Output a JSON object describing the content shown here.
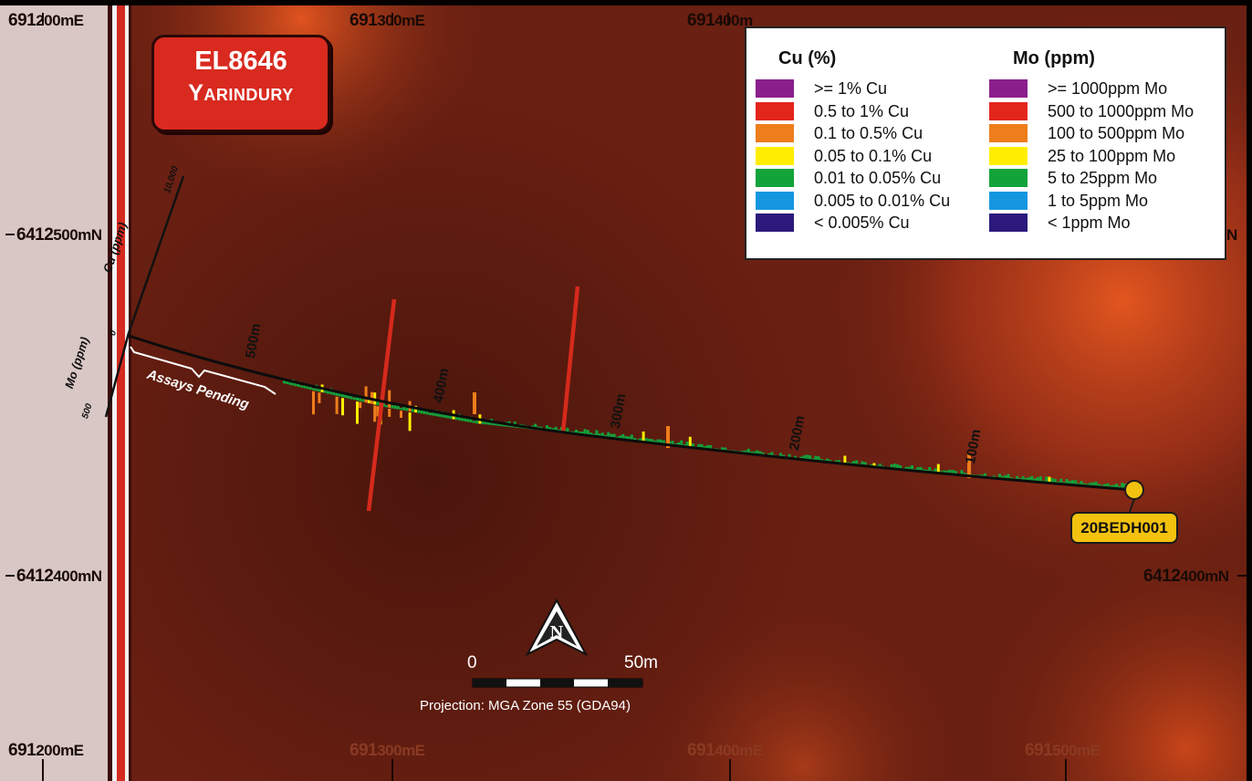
{
  "title": {
    "line1": "EL8646",
    "line2": "Yarindury"
  },
  "grid_labels": {
    "top": [
      {
        "prefix": "691",
        "main": "200mE"
      },
      {
        "prefix": "691",
        "main": "300mE"
      },
      {
        "prefix": "691",
        "main": "400m"
      }
    ],
    "bottom": [
      {
        "prefix": "691",
        "main": "200mE"
      },
      {
        "prefix": "691",
        "main": "300mE"
      },
      {
        "prefix": "691",
        "main": "400mE"
      },
      {
        "prefix": "691",
        "main": "500mE"
      }
    ],
    "left": [
      {
        "prefix": "6412",
        "main": "500mN"
      },
      {
        "prefix": "6412",
        "main": "400mN"
      }
    ],
    "right": [
      {
        "prefix": "",
        "main": "N"
      },
      {
        "prefix": "6412",
        "main": "400mN"
      }
    ]
  },
  "legend": {
    "cu_title": "Cu (%)",
    "mo_title": "Mo (ppm)",
    "cu_items": [
      {
        "label": ">= 1% Cu",
        "color": "#8b1f8c"
      },
      {
        "label": "0.5 to 1% Cu",
        "color": "#e3261c"
      },
      {
        "label": "0.1 to 0.5% Cu",
        "color": "#ee7d1b"
      },
      {
        "label": "0.05 to 0.1% Cu",
        "color": "#ffee00"
      },
      {
        "label": "0.01 to 0.05% Cu",
        "color": "#12a33b"
      },
      {
        "label": "0.005 to 0.01% Cu",
        "color": "#1597e0"
      },
      {
        "label": "< 0.005% Cu",
        "color": "#2b1a7c"
      }
    ],
    "mo_items": [
      {
        "label": ">= 1000ppm Mo",
        "color": "#8b1f8c"
      },
      {
        "label": "500 to 1000ppm Mo",
        "color": "#e3261c"
      },
      {
        "label": "100 to 500ppm Mo",
        "color": "#ee7d1b"
      },
      {
        "label": "25 to 100ppm Mo",
        "color": "#ffee00"
      },
      {
        "label": "5 to 25ppm Mo",
        "color": "#12a33b"
      },
      {
        "label": "1 to 5ppm Mo",
        "color": "#1597e0"
      },
      {
        "label": "< 1ppm Mo",
        "color": "#2b1a7c"
      }
    ]
  },
  "drillhole": {
    "name": "20BEDH001",
    "depth_marks": [
      "100m",
      "200m",
      "300m",
      "400m",
      "500m"
    ],
    "pending_label": "Assays Pending"
  },
  "axes_key": {
    "cu_label": "Cu (ppm)",
    "cu_tick": "10,000",
    "zero": "0",
    "mo_label": "Mo (ppm)",
    "mo_tick": "500"
  },
  "scale_bar": {
    "start": "0",
    "end": "50m",
    "projection": "Projection: MGA Zone 55 (GDA94)"
  },
  "north_arrow": {
    "letter": "N"
  },
  "colors": {
    "background_dark": "#5a1c10",
    "background_hot": "#d9501e",
    "title_red": "#d92a1f",
    "label_yellow": "#f3c20f",
    "border_red": "#d42a20"
  }
}
